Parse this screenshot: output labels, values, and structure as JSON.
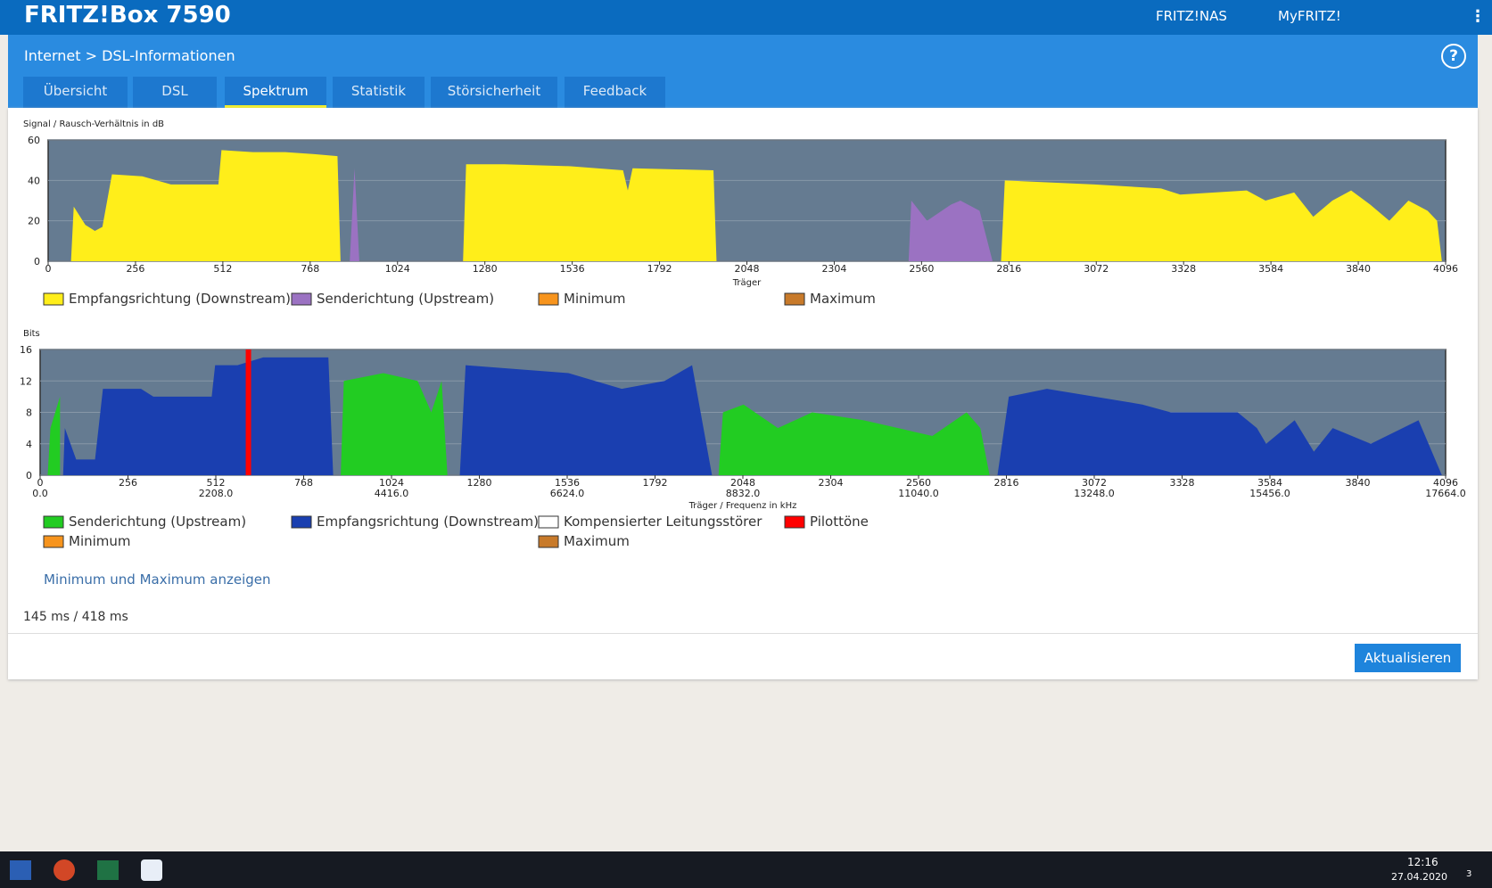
{
  "header": {
    "title": "FRITZ!Box 7590",
    "links": [
      "FRITZ!NAS",
      "MyFRITZ!"
    ]
  },
  "breadcrumb": [
    "Internet",
    "DSL-Informationen"
  ],
  "help": "?",
  "tabs": [
    "Übersicht",
    "DSL",
    "Spektrum",
    "Statistik",
    "Störsicherheit",
    "Feedback"
  ],
  "active_tab": "Spektrum",
  "chart_data": [
    {
      "type": "area",
      "y_label": "Signal / Rausch-Verhältnis in dB",
      "x_label": "Träger",
      "xlim": [
        0,
        4096
      ],
      "xticks": [
        0,
        256,
        512,
        768,
        1024,
        1280,
        1536,
        1792,
        2048,
        2304,
        2560,
        2816,
        3072,
        3328,
        3584,
        3840,
        4096
      ],
      "ylim": [
        0,
        60
      ],
      "yticks": [
        0,
        20,
        40,
        60
      ],
      "grid": true,
      "series": [
        {
          "name": "Empfangsrichtung (Downstream)",
          "color": "#ffee1a",
          "x": [
            67,
            75,
            109,
            137,
            159,
            187,
            276,
            360,
            416,
            499,
            508,
            600,
            695,
            780,
            848,
            857,
            1000,
            1216,
            1225,
            1337,
            1532,
            1685,
            1699,
            1713,
            1950,
            1959,
            2400,
            2793,
            2804,
            3066,
            3262,
            3318,
            3513,
            3568,
            3652,
            3708,
            3764,
            3819,
            3875,
            3931,
            3987,
            4043,
            4071,
            4085
          ],
          "values": [
            0,
            27,
            18,
            15,
            17,
            43,
            42,
            38,
            38,
            38,
            55,
            54,
            54,
            53,
            52,
            0,
            null,
            0,
            48,
            48,
            47,
            45,
            35,
            46,
            45,
            0,
            null,
            0,
            40,
            38,
            36,
            33,
            35,
            30,
            34,
            22,
            30,
            35,
            28,
            20,
            30,
            25,
            20,
            0
          ]
        },
        {
          "name": "Senderichtung (Upstream)",
          "color": "#9b72c2",
          "x": [
            884,
            898,
            912,
            1500,
            2522,
            2530,
            2576,
            2646,
            2674,
            2730,
            2768
          ],
          "values": [
            0,
            46,
            0,
            null,
            0,
            30,
            20,
            28,
            30,
            25,
            0
          ]
        },
        {
          "name": "Minimum",
          "color": "#f7941d",
          "x": [],
          "values": []
        },
        {
          "name": "Maximum",
          "color": "#c87a2a",
          "x": [],
          "values": []
        }
      ]
    },
    {
      "type": "area",
      "y_label": "Bits",
      "x_label": "Träger / Frequenz in kHz",
      "xlim": [
        0,
        4096
      ],
      "xticks": [
        0,
        256,
        512,
        768,
        1024,
        1280,
        1536,
        1792,
        2048,
        2304,
        2560,
        2816,
        3072,
        3328,
        3584,
        3840,
        4096
      ],
      "x2lim": [
        0,
        17664
      ],
      "x2ticks": [
        {
          "value": 0,
          "label": "0.0"
        },
        {
          "value": 2208,
          "label": "2208.0"
        },
        {
          "value": 4416,
          "label": "4416.0"
        },
        {
          "value": 6624,
          "label": "6624.0"
        },
        {
          "value": 8832,
          "label": "8832.0"
        },
        {
          "value": 11040,
          "label": "11040.0"
        },
        {
          "value": 13248,
          "label": "13248.0"
        },
        {
          "value": 15456,
          "label": "15456.0"
        },
        {
          "value": 17664,
          "label": "17664.0"
        }
      ],
      "ylim": [
        0,
        16
      ],
      "yticks": [
        0,
        4,
        8,
        12,
        16
      ],
      "grid": true,
      "series": [
        {
          "name": "Senderichtung (Upstream)",
          "color": "#22cc22",
          "x": [
            22,
            30,
            58,
            500,
            876,
            885,
            1000,
            1100,
            1140,
            1170,
            1187,
            1600,
            1977,
            1990,
            2050,
            2150,
            2250,
            2400,
            2500,
            2600,
            2700,
            2740,
            2767
          ],
          "values": [
            0,
            6,
            10,
            null,
            0,
            12,
            13,
            12,
            8,
            12,
            0,
            null,
            0,
            8,
            9,
            6,
            8,
            7,
            6,
            5,
            8,
            6,
            0
          ]
        },
        {
          "name": "Empfangsrichtung (Downstream)",
          "color": "#1a3fb0",
          "x": [
            67,
            72,
            105,
            160,
            183,
            294,
            330,
            500,
            510,
            575,
            650,
            840,
            854,
            1000,
            1223,
            1240,
            1540,
            1695,
            1820,
            1900,
            1958,
            2300,
            2790,
            2823,
            2934,
            3073,
            3212,
            3295,
            3490,
            3546,
            3573,
            3656,
            3712,
            3767,
            3878,
            4017,
            4085
          ],
          "values": [
            0,
            6,
            2,
            2,
            11,
            11,
            10,
            10,
            14,
            14,
            15,
            15,
            0,
            null,
            0,
            14,
            13,
            11,
            12,
            14,
            0,
            null,
            0,
            10,
            11,
            10,
            9,
            8,
            8,
            6,
            4,
            7,
            3,
            6,
            4,
            7,
            0
          ]
        },
        {
          "name": "Kompensierter Leitungsstörer",
          "color": "#ffffff",
          "x": [],
          "values": []
        },
        {
          "name": "Pilottöne",
          "color": "#ff0000",
          "draw": "bar",
          "x": [
            607
          ],
          "values": [
            16
          ]
        },
        {
          "name": "Minimum",
          "color": "#f7941d",
          "x": [],
          "values": []
        },
        {
          "name": "Maximum",
          "color": "#c87a2a",
          "x": [],
          "values": []
        }
      ]
    }
  ],
  "link": "Minimum und Maximum anzeigen",
  "timing": "145 ms / 418 ms",
  "button": "Aktualisieren",
  "taskbar": {
    "time": "12:16",
    "date": "27.04.2020",
    "badge": "3"
  }
}
